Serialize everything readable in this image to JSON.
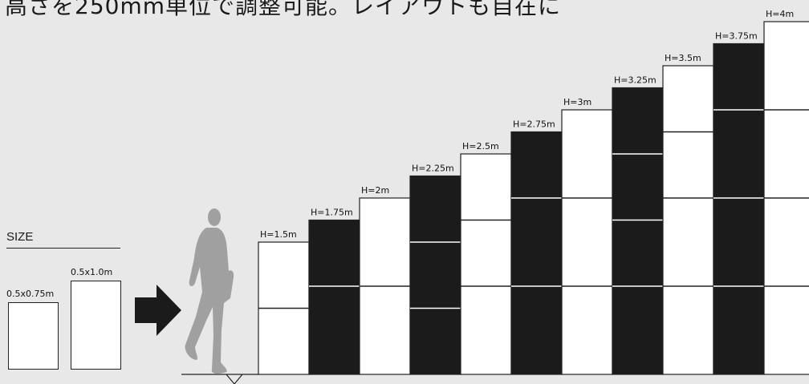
{
  "heading": "高さを250mm単位で調整可能。レイアウトも自在に",
  "size_section": {
    "title": "SIZE",
    "small_panel_label": "0.5x0.75m",
    "large_panel_label": "0.5x1.0m"
  },
  "icons": {
    "arrow": "right-arrow-icon",
    "person": "walking-person-silhouette"
  },
  "colors": {
    "background": "#e8e8e8",
    "dark_panel": "#1b1b1b",
    "light_panel": "#ffffff",
    "outline": "#222222"
  },
  "columns": [
    {
      "label": "H=1.5m",
      "height_m": 1.5,
      "color": "white",
      "splits_m": [
        0.75
      ]
    },
    {
      "label": "H=1.75m",
      "height_m": 1.75,
      "color": "black",
      "splits_m": [
        1.0
      ]
    },
    {
      "label": "H=2m",
      "height_m": 2.0,
      "color": "white",
      "splits_m": [
        1.0
      ]
    },
    {
      "label": "H=2.25m",
      "height_m": 2.25,
      "color": "black",
      "splits_m": [
        0.75,
        1.5
      ]
    },
    {
      "label": "H=2.5m",
      "height_m": 2.5,
      "color": "white",
      "splits_m": [
        1.0,
        1.75
      ]
    },
    {
      "label": "H=2.75m",
      "height_m": 2.75,
      "color": "black",
      "splits_m": [
        1.0,
        2.0
      ]
    },
    {
      "label": "H=3m",
      "height_m": 3.0,
      "color": "white",
      "splits_m": [
        1.0,
        2.0
      ]
    },
    {
      "label": "H=3.25m",
      "height_m": 3.25,
      "color": "black",
      "splits_m": [
        1.0,
        1.75,
        2.5
      ]
    },
    {
      "label": "H=3.5m",
      "height_m": 3.5,
      "color": "white",
      "splits_m": [
        1.0,
        2.0,
        2.75
      ]
    },
    {
      "label": "H=3.75m",
      "height_m": 3.75,
      "color": "black",
      "splits_m": [
        1.0,
        2.0,
        3.0
      ]
    },
    {
      "label": "H=4m",
      "height_m": 4.0,
      "color": "white",
      "splits_m": [
        1.0,
        2.0,
        3.0
      ]
    }
  ]
}
